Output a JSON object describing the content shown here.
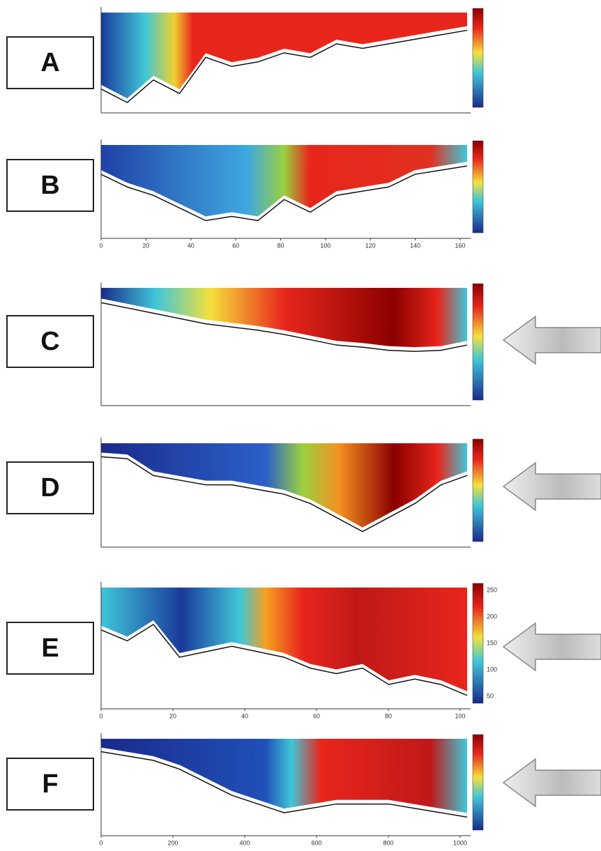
{
  "panels": [
    {
      "label": "A"
    },
    {
      "label": "B",
      "x_ticks": [
        0,
        20,
        40,
        60,
        80,
        100,
        120,
        140,
        160
      ]
    },
    {
      "label": "C"
    },
    {
      "label": "D"
    },
    {
      "label": "E",
      "x_ticks": [
        0,
        20,
        40,
        60,
        80,
        100
      ],
      "colorbar_ticks": [
        250,
        200,
        150,
        100,
        50
      ]
    },
    {
      "label": "F",
      "x_ticks": [
        0,
        200,
        400,
        600,
        800,
        1000
      ]
    }
  ]
}
